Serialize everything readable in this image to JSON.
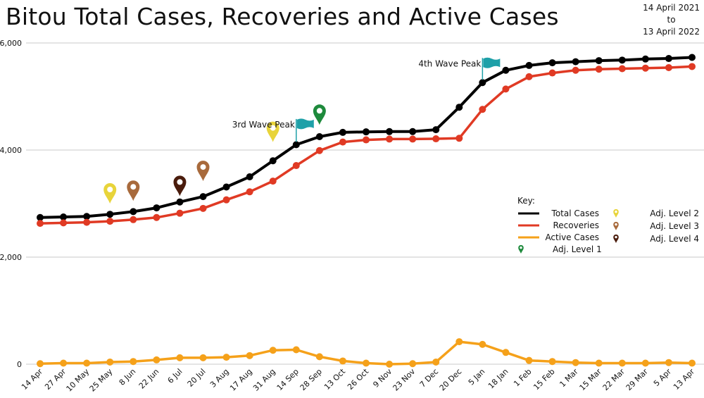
{
  "header": {
    "title": "Bitou Total Cases, Recoveries and Active Cases",
    "date_from": "14 April 2021",
    "date_to_word": "to",
    "date_to": "13 April 2022"
  },
  "colors": {
    "total": "#000000",
    "recoveries": "#e03a24",
    "active": "#f5a11a",
    "grid": "#c8c8c8",
    "level1": "#1e8a3c",
    "level2": "#e8d43a",
    "level3": "#a86a3c",
    "level4": "#4a1c0c",
    "flag": "#1ea0a8"
  },
  "chart_data": {
    "type": "line",
    "title": "Bitou Total Cases, Recoveries and Active Cases",
    "xlabel": "",
    "ylabel": "",
    "ylim": [
      0,
      6000
    ],
    "y_ticks": [
      "0",
      "2,000",
      "4,000",
      "6,000"
    ],
    "y_tick_values": [
      0,
      2000,
      4000,
      6000
    ],
    "grid": true,
    "legend_position": "right",
    "categories": [
      "14 Apr",
      "27 Apr",
      "10 May",
      "25 May",
      "8 Jun",
      "22 Jun",
      "6 Jul",
      "20 Jul",
      "3 Aug",
      "17 Aug",
      "31 Aug",
      "14 Sep",
      "28 Sep",
      "13 Oct",
      "26 Oct",
      "9 Nov",
      "23 Nov",
      "7 Dec",
      "20 Dec",
      "5 Jan",
      "18 Jan",
      "1 Feb",
      "15 Feb",
      "1 Mar",
      "15 Mar",
      "22 Mar",
      "29 Mar",
      "5 Apr",
      "13 Apr"
    ],
    "series": [
      {
        "name": "Total Cases",
        "color": "#000000",
        "values": [
          2740,
          2750,
          2760,
          2800,
          2850,
          2920,
          3030,
          3130,
          3310,
          3500,
          3800,
          4100,
          4250,
          4330,
          4340,
          4345,
          4345,
          4380,
          4800,
          5260,
          5490,
          5580,
          5630,
          5650,
          5670,
          5680,
          5700,
          5710,
          5730
        ]
      },
      {
        "name": "Recoveries",
        "color": "#e03a24",
        "values": [
          2630,
          2640,
          2650,
          2670,
          2700,
          2740,
          2820,
          2910,
          3070,
          3220,
          3420,
          3710,
          3990,
          4150,
          4190,
          4205,
          4205,
          4210,
          4220,
          4760,
          5140,
          5370,
          5440,
          5490,
          5510,
          5520,
          5530,
          5540,
          5560
        ]
      },
      {
        "name": "Active Cases",
        "color": "#f5a11a",
        "values": [
          10,
          20,
          20,
          40,
          50,
          80,
          120,
          120,
          130,
          160,
          260,
          270,
          140,
          60,
          20,
          0,
          10,
          40,
          420,
          370,
          220,
          70,
          50,
          30,
          20,
          20,
          20,
          30,
          20
        ]
      }
    ],
    "annotations": [
      {
        "text": "3rd Wave Peak",
        "at_category": "14 Sep",
        "y": 4580
      },
      {
        "text": "4th Wave Peak",
        "at_category": "5 Jan",
        "y": 5720
      }
    ],
    "adjusted_level_markers": [
      {
        "level": 2,
        "at_category": "25 May",
        "y": 3000
      },
      {
        "level": 3,
        "at_category": "8 Jun",
        "y": 3050
      },
      {
        "level": 4,
        "at_category": "6 Jul",
        "y": 3140
      },
      {
        "level": 3,
        "at_category": "20 Jul",
        "y": 3420
      },
      {
        "level": 2,
        "at_category": "31 Aug",
        "y": 4150
      },
      {
        "level": 1,
        "at_category": "28 Sep",
        "y": 4470
      }
    ],
    "legend": {
      "title": "Key:",
      "lines": [
        "Total Cases",
        "Recoveries",
        "Active Cases"
      ],
      "markers": [
        "Adj. Level 1",
        "Adj. Level 2",
        "Adj. Level 3",
        "Adj. Level 4"
      ]
    }
  }
}
